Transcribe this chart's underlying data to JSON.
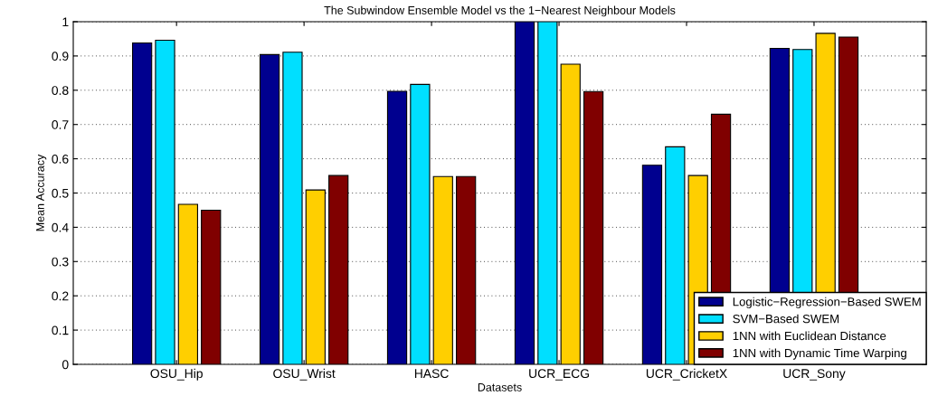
{
  "chart_data": {
    "type": "bar",
    "title": "The Subwindow Ensemble Model vs the 1−Nearest Neighbour Models",
    "xlabel": "Datasets",
    "ylabel": "Mean Accuracy",
    "categories": [
      "OSU_Hip",
      "OSU_Wrist",
      "HASC",
      "UCR_ECG",
      "UCR_CricketX",
      "UCR_Sony"
    ],
    "series": [
      {
        "name": "Logistic−Regression−Based SWEM",
        "color": "#00008f",
        "values": [
          0.938,
          0.904,
          0.797,
          1.0,
          0.581,
          0.922
        ]
      },
      {
        "name": "SVM−Based SWEM",
        "color": "#00dfff",
        "values": [
          0.946,
          0.911,
          0.817,
          1.0,
          0.635,
          0.919
        ]
      },
      {
        "name": "1NN with Euclidean Distance",
        "color": "#ffcf00",
        "values": [
          0.467,
          0.509,
          0.548,
          0.876,
          0.551,
          0.966
        ]
      },
      {
        "name": "1NN with Dynamic Time Warping",
        "color": "#800000",
        "values": [
          0.45,
          0.551,
          0.548,
          0.796,
          0.73,
          0.955
        ]
      }
    ],
    "ylim": [
      0,
      1
    ],
    "yticks": [
      0,
      0.1,
      0.2,
      0.3,
      0.4,
      0.5,
      0.6,
      0.7,
      0.8,
      0.9,
      1
    ],
    "grid": "y",
    "legend": "bottom right"
  }
}
